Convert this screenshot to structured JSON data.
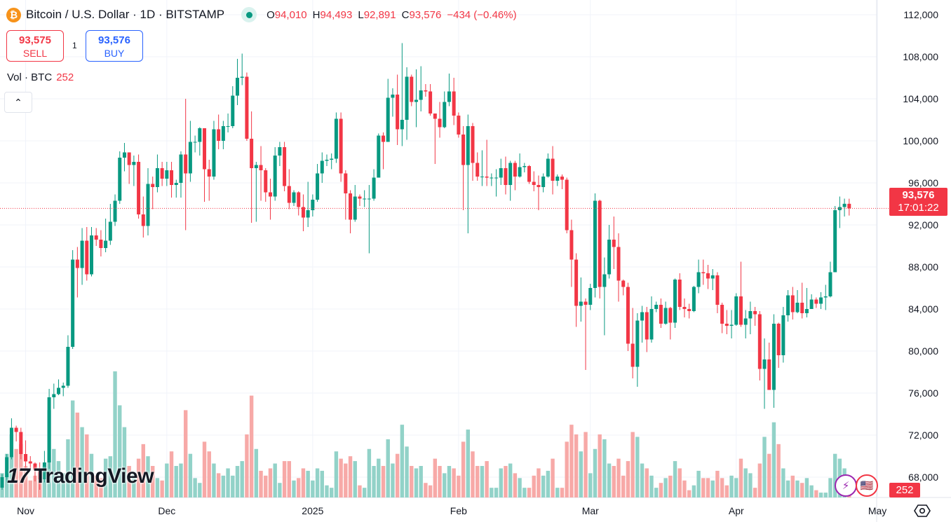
{
  "header": {
    "symbol_icon": "bitcoin-icon",
    "title": "Bitcoin / U.S. Dollar · 1D · BITSTAMP",
    "ohlc": {
      "o_label": "O",
      "o": "94,010",
      "h_label": "H",
      "h": "94,493",
      "l_label": "L",
      "l": "92,891",
      "c_label": "C",
      "c": "93,576",
      "change": "−434 (−0.46%)"
    }
  },
  "trade": {
    "sell_price": "93,575",
    "sell_label": "SELL",
    "spread": "1",
    "buy_price": "93,576",
    "buy_label": "BUY"
  },
  "volume_legend": {
    "label": "Vol · BTC",
    "value": "252"
  },
  "collapse_icon": "chevron-up-icon",
  "collapse_glyph": "⌃",
  "logo_text": "TradingView",
  "price_tag": {
    "price": "93,576",
    "countdown": "17:01:22"
  },
  "volume_tag": "252",
  "colors": {
    "up": "#089981",
    "down": "#f23645",
    "vol_up": "#92d2c8",
    "vol_down": "#f7a9a7",
    "grid": "#f0f3fa"
  },
  "chart_data": {
    "type": "candlestick",
    "title": "Bitcoin / U.S. Dollar · 1D · BITSTAMP",
    "ylim": [
      66000,
      114000
    ],
    "y_ticks": [
      "112,000",
      "108,000",
      "104,000",
      "100,000",
      "96,000",
      "92,000",
      "88,000",
      "84,000",
      "80,000",
      "76,000",
      "72,000",
      "68,000"
    ],
    "y_tick_values": [
      112000,
      108000,
      104000,
      100000,
      96000,
      92000,
      88000,
      84000,
      80000,
      76000,
      72000,
      68000
    ],
    "time_labels": [
      {
        "label": "Nov",
        "index": 5
      },
      {
        "label": "Dec",
        "index": 35
      },
      {
        "label": "2025",
        "index": 66
      },
      {
        "label": "Feb",
        "index": 97
      },
      {
        "label": "Mar",
        "index": 125
      },
      {
        "label": "Apr",
        "index": 156
      },
      {
        "label": "May",
        "index": 186
      }
    ],
    "first_open": 67000,
    "close": [
      68000,
      69900,
      72700,
      72300,
      70200,
      69500,
      69300,
      68700,
      67800,
      69400,
      75600,
      75900,
      76500,
      76700,
      80400,
      88700,
      87900,
      90500,
      87300,
      91000,
      90600,
      89800,
      90500,
      92300,
      94300,
      98400,
      98900,
      97700,
      98000,
      93000,
      91900,
      95900,
      95600,
      97400,
      96400,
      97200,
      95800,
      96000,
      98700,
      96900,
      99900,
      99900,
      101200,
      97300,
      96600,
      101100,
      100000,
      101400,
      101400,
      104300,
      106000,
      106100,
      100200,
      97400,
      97700,
      97200,
      95100,
      94700,
      98600,
      99400,
      95700,
      94100,
      95100,
      93700,
      92700,
      93400,
      94400,
      96900,
      98100,
      98200,
      98300,
      102100,
      96900,
      95000,
      92500,
      94700,
      94500,
      94500,
      94500,
      96500,
      100500,
      99900,
      104100,
      104400,
      101100,
      102000,
      106100,
      103700,
      103900,
      104800,
      104700,
      102600,
      102100,
      101300,
      103700,
      104700,
      102400,
      100600,
      97700,
      101400,
      97900,
      96600,
      96600,
      96500,
      96500,
      96500,
      97400,
      95800,
      97900,
      96600,
      97500,
      97600,
      96100,
      95800,
      95600,
      96600,
      98300,
      96200,
      96600,
      96300,
      91500,
      88700,
      84300,
      84700,
      84400,
      86000,
      94300,
      86100,
      87300,
      90600,
      89900,
      86700,
      86100,
      80700,
      78500,
      82900,
      83700,
      81100,
      84000,
      84400,
      82600,
      84100,
      82700,
      86800,
      84200,
      84000,
      83800,
      86100,
      87500,
      87400,
      86900,
      87200,
      84400,
      82600,
      82400,
      82500,
      85200,
      82500,
      83100,
      83800,
      83500,
      78300,
      79200,
      76300,
      82600,
      79600,
      83400,
      85300,
      83700,
      84600,
      83600,
      84000,
      84900,
      84500,
      85100,
      85200,
      87500,
      93400,
      93700,
      94010,
      93576
    ],
    "high": [
      68300,
      70200,
      73600,
      72900,
      72700,
      71500,
      70000,
      69400,
      69400,
      70500,
      76400,
      76900,
      77300,
      77000,
      81500,
      89600,
      89900,
      91700,
      91800,
      91800,
      91700,
      91500,
      92600,
      94000,
      94900,
      99000,
      99800,
      98900,
      98600,
      98700,
      94700,
      97400,
      96600,
      98700,
      98000,
      98000,
      98000,
      96300,
      99000,
      104000,
      101900,
      100500,
      101300,
      101200,
      98200,
      101900,
      102500,
      101900,
      102600,
      105200,
      107800,
      108300,
      106500,
      102800,
      98000,
      99500,
      97400,
      96400,
      99400,
      99900,
      99900,
      97300,
      95300,
      95200,
      94900,
      96100,
      94900,
      97800,
      98900,
      98700,
      98800,
      102700,
      102700,
      97200,
      95300,
      95800,
      94900,
      95300,
      95800,
      97300,
      100700,
      100800,
      105900,
      105000,
      106300,
      109300,
      107000,
      106300,
      106800,
      107100,
      105400,
      105400,
      102500,
      103700,
      104700,
      106400,
      106000,
      102700,
      101400,
      102500,
      101700,
      98900,
      99100,
      100100,
      96900,
      97300,
      98300,
      98500,
      98100,
      98100,
      98800,
      97900,
      97700,
      97100,
      96700,
      96900,
      98800,
      99500,
      96800,
      96800,
      96500,
      92500,
      89300,
      87000,
      85000,
      86400,
      95000,
      94400,
      88900,
      92000,
      92800,
      91200,
      86800,
      86500,
      84100,
      83600,
      84300,
      84200,
      85200,
      84700,
      85000,
      84700,
      84200,
      86900,
      87400,
      85000,
      84500,
      86200,
      88700,
      88700,
      88200,
      87800,
      87500,
      84600,
      83900,
      83900,
      85500,
      88500,
      83900,
      84700,
      84200,
      83800,
      81200,
      80800,
      83500,
      82700,
      84200,
      85800,
      86100,
      85800,
      86500,
      86000,
      85400,
      85100,
      85600,
      86300,
      88500,
      93800,
      94700,
      94500,
      94493
    ],
    "low": [
      66800,
      67500,
      69700,
      71400,
      69700,
      68800,
      68800,
      67600,
      66800,
      67500,
      68800,
      74500,
      75800,
      75700,
      76500,
      80200,
      85100,
      86300,
      86700,
      87100,
      90000,
      89000,
      89400,
      90100,
      91900,
      94000,
      97100,
      95900,
      95700,
      92600,
      90800,
      91000,
      93500,
      95100,
      95700,
      95700,
      94600,
      94600,
      94600,
      91500,
      96100,
      98900,
      98600,
      94200,
      94300,
      96300,
      99200,
      99200,
      100800,
      101200,
      103400,
      105300,
      100000,
      92200,
      92300,
      94300,
      94200,
      92500,
      94300,
      97600,
      95200,
      93500,
      93800,
      92900,
      91400,
      91800,
      92800,
      94200,
      96000,
      97600,
      97300,
      97900,
      96100,
      92500,
      91200,
      92300,
      93800,
      93700,
      89300,
      94300,
      96500,
      97300,
      99900,
      102300,
      99600,
      99500,
      100100,
      103300,
      101300,
      102800,
      104200,
      102400,
      97800,
      100300,
      101200,
      103300,
      101500,
      100300,
      93400,
      91200,
      96200,
      96200,
      95700,
      95700,
      95700,
      94700,
      95800,
      94900,
      94300,
      95300,
      96500,
      97000,
      95900,
      95200,
      93400,
      95100,
      96500,
      94900,
      95700,
      95400,
      91200,
      86100,
      82300,
      82800,
      78200,
      83900,
      85100,
      85000,
      81500,
      86900,
      87800,
      84700,
      85300,
      80000,
      77400,
      76600,
      80800,
      79900,
      80800,
      83700,
      82200,
      82500,
      81100,
      82200,
      83900,
      83200,
      83100,
      83700,
      85500,
      86300,
      85900,
      85800,
      83600,
      81700,
      81600,
      81200,
      82400,
      82300,
      81200,
      81600,
      82400,
      77200,
      74500,
      76300,
      74600,
      78400,
      78900,
      82800,
      83000,
      83600,
      83100,
      83200,
      84000,
      84100,
      84000,
      83900,
      85100,
      87500,
      91700,
      92800,
      92891
    ],
    "volume": [
      1000,
      1800,
      2600,
      2000,
      2200,
      1300,
      700,
      900,
      1100,
      1300,
      3600,
      2000,
      1500,
      1000,
      2400,
      4000,
      3500,
      2900,
      2600,
      1800,
      900,
      800,
      1600,
      1700,
      5200,
      3800,
      2900,
      1300,
      1000,
      1600,
      2200,
      1700,
      1300,
      800,
      700,
      1400,
      1900,
      1300,
      1400,
      3600,
      1800,
      800,
      600,
      2300,
      1900,
      1400,
      1000,
      900,
      1200,
      900,
      1300,
      1500,
      2600,
      4200,
      2000,
      1100,
      900,
      1200,
      1400,
      600,
      1500,
      1500,
      700,
      800,
      1200,
      1100,
      700,
      1200,
      1100,
      500,
      400,
      1900,
      1600,
      1400,
      1700,
      1500,
      500,
      400,
      2000,
      1300,
      1600,
      1300,
      2400,
      1400,
      1800,
      3000,
      2100,
      1300,
      1200,
      1300,
      600,
      500,
      1600,
      1300,
      1000,
      1300,
      1200,
      900,
      2300,
      2800,
      1900,
      1300,
      1300,
      1500,
      400,
      400,
      1200,
      1300,
      1400,
      1000,
      800,
      400,
      400,
      900,
      1200,
      900,
      1100,
      1600,
      400,
      400,
      2300,
      3000,
      2600,
      1900,
      2700,
      1000,
      2000,
      2600,
      2400,
      1400,
      1300,
      1600,
      900,
      1500,
      2700,
      2500,
      1400,
      1200,
      900,
      400,
      600,
      800,
      900,
      1500,
      1200,
      700,
      300,
      500,
      1100,
      800,
      800,
      700,
      1100,
      800,
      500,
      900,
      800,
      1600,
      1200,
      1000,
      400,
      1400,
      2500,
      1800,
      3100,
      2200,
      1200,
      700,
      900,
      700,
      600,
      800,
      500,
      300,
      200,
      200,
      800,
      1800,
      1600,
      1200,
      252
    ],
    "last_price": 93576
  }
}
